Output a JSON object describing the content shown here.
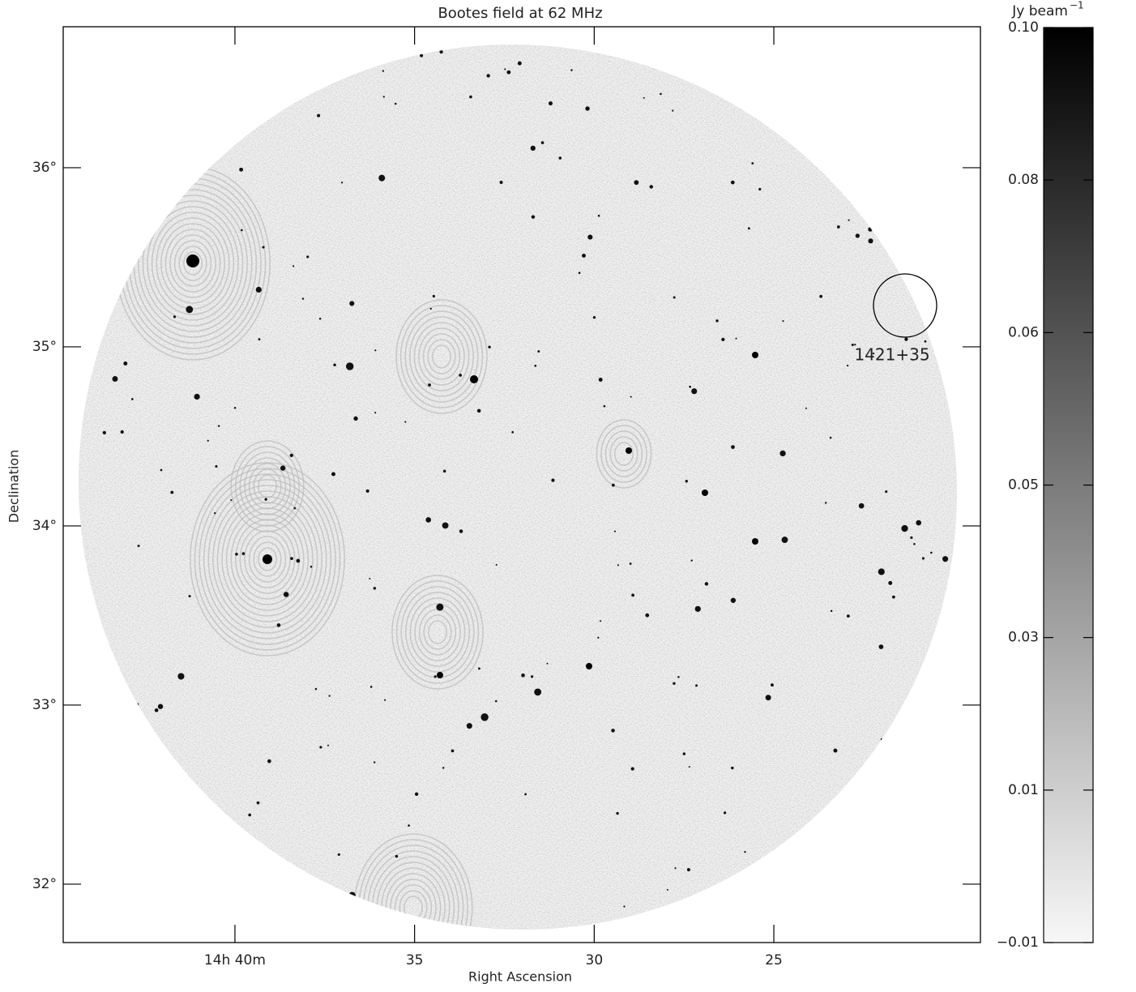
{
  "chart_data": {
    "type": "image",
    "title": "Bootes field at 62 MHz",
    "x_label": "Right Ascension",
    "y_label": "Declination",
    "xlim": [
      44.78,
      19.25
    ],
    "xticks": [
      {
        "value": 40,
        "label": "14h 40m"
      },
      35,
      30,
      25
    ],
    "ylim": [
      31.674,
      36.787
    ],
    "yticks": [
      {
        "value": 32,
        "label": "32°"
      },
      {
        "value": 33,
        "label": "33°"
      },
      {
        "value": 34,
        "label": "34°"
      },
      {
        "value": 35,
        "label": "35°"
      },
      {
        "value": 36,
        "label": "36°"
      }
    ],
    "annotation": "1421+35",
    "colorbar": {
      "label": "Jy beam",
      "label_exponent": "−1",
      "clim": [
        -0.01,
        0.1
      ],
      "colors": [
        "#f7f7f7",
        "#000000"
      ],
      "ticks": [
        {
          "value": -0.01,
          "label": "−0.01"
        },
        {
          "value": 0.00833,
          "label": "0.01"
        },
        {
          "value": 0.02667,
          "label": "0.03"
        },
        {
          "value": 0.045,
          "label": "0.05"
        },
        {
          "value": 0.06333,
          "label": "0.06"
        },
        {
          "value": 0.08167,
          "label": "0.08"
        },
        {
          "value": 0.1,
          "label": "0.10"
        }
      ]
    }
  }
}
